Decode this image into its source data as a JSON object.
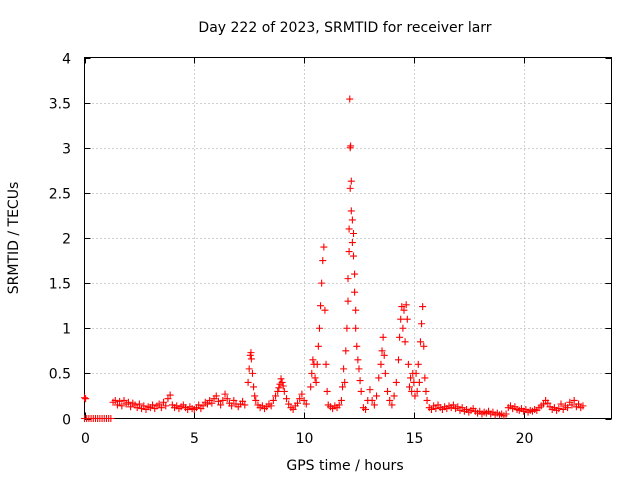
{
  "chart_data": {
    "type": "scatter",
    "title": "Day 222 of 2023, SRMTID for receiver larr",
    "xlabel": "GPS time / hours",
    "ylabel": "SRMTID / TECUs",
    "xlim": [
      0,
      24
    ],
    "ylim": [
      0,
      4
    ],
    "x_ticks": [
      0,
      5,
      10,
      15,
      20
    ],
    "x_tick_labels": [
      "0",
      "5",
      "10",
      "15",
      "20"
    ],
    "y_ticks": [
      0,
      0.5,
      1,
      1.5,
      2,
      2.5,
      3,
      3.5,
      4
    ],
    "y_tick_labels": [
      "0",
      "0.5",
      "1",
      "1.5",
      "2",
      "2.5",
      "3",
      "3.5",
      "4"
    ],
    "grid": true,
    "legend": "none",
    "marker": "plus",
    "series_color": "#ff0000",
    "series": [
      {
        "name": "SRMTID",
        "points": [
          [
            0.0,
            0.23
          ],
          [
            0.05,
            0.22
          ],
          [
            0.0,
            0.0
          ],
          [
            0.1,
            0.0
          ],
          [
            0.2,
            0.0
          ],
          [
            0.3,
            0.0
          ],
          [
            0.4,
            0.0
          ],
          [
            0.5,
            0.0
          ],
          [
            0.6,
            0.0
          ],
          [
            0.7,
            0.0
          ],
          [
            0.8,
            0.0
          ],
          [
            0.9,
            0.0
          ],
          [
            1.0,
            0.0
          ],
          [
            1.1,
            0.0
          ],
          [
            1.2,
            0.0
          ],
          [
            1.3,
            0.18
          ],
          [
            1.4,
            0.2
          ],
          [
            1.5,
            0.15
          ],
          [
            1.6,
            0.19
          ],
          [
            1.7,
            0.14
          ],
          [
            1.8,
            0.2
          ],
          [
            1.9,
            0.16
          ],
          [
            2.0,
            0.18
          ],
          [
            2.1,
            0.13
          ],
          [
            2.2,
            0.17
          ],
          [
            2.3,
            0.15
          ],
          [
            2.4,
            0.12
          ],
          [
            2.5,
            0.16
          ],
          [
            2.6,
            0.11
          ],
          [
            2.7,
            0.14
          ],
          [
            2.8,
            0.1
          ],
          [
            2.9,
            0.13
          ],
          [
            3.0,
            0.12
          ],
          [
            3.1,
            0.15
          ],
          [
            3.2,
            0.11
          ],
          [
            3.3,
            0.14
          ],
          [
            3.4,
            0.16
          ],
          [
            3.5,
            0.12
          ],
          [
            3.6,
            0.18
          ],
          [
            3.7,
            0.14
          ],
          [
            3.8,
            0.22
          ],
          [
            3.9,
            0.26
          ],
          [
            4.0,
            0.15
          ],
          [
            4.1,
            0.12
          ],
          [
            4.2,
            0.14
          ],
          [
            4.3,
            0.11
          ],
          [
            4.4,
            0.13
          ],
          [
            4.5,
            0.15
          ],
          [
            4.6,
            0.12
          ],
          [
            4.7,
            0.1
          ],
          [
            4.8,
            0.13
          ],
          [
            4.9,
            0.11
          ],
          [
            5.0,
            0.1
          ],
          [
            5.1,
            0.12
          ],
          [
            5.2,
            0.15
          ],
          [
            5.3,
            0.11
          ],
          [
            5.4,
            0.14
          ],
          [
            5.5,
            0.18
          ],
          [
            5.6,
            0.16
          ],
          [
            5.7,
            0.2
          ],
          [
            5.8,
            0.17
          ],
          [
            5.9,
            0.22
          ],
          [
            6.0,
            0.25
          ],
          [
            6.1,
            0.19
          ],
          [
            6.2,
            0.15
          ],
          [
            6.3,
            0.2
          ],
          [
            6.4,
            0.27
          ],
          [
            6.5,
            0.22
          ],
          [
            6.6,
            0.17
          ],
          [
            6.7,
            0.14
          ],
          [
            6.8,
            0.2
          ],
          [
            6.9,
            0.16
          ],
          [
            7.0,
            0.13
          ],
          [
            7.1,
            0.16
          ],
          [
            7.2,
            0.19
          ],
          [
            7.3,
            0.15
          ],
          [
            7.45,
            0.4
          ],
          [
            7.5,
            0.55
          ],
          [
            7.55,
            0.7
          ],
          [
            7.58,
            0.73
          ],
          [
            7.6,
            0.66
          ],
          [
            7.65,
            0.5
          ],
          [
            7.7,
            0.35
          ],
          [
            7.75,
            0.25
          ],
          [
            7.8,
            0.2
          ],
          [
            7.9,
            0.15
          ],
          [
            8.0,
            0.12
          ],
          [
            8.1,
            0.14
          ],
          [
            8.2,
            0.11
          ],
          [
            8.3,
            0.13
          ],
          [
            8.4,
            0.16
          ],
          [
            8.5,
            0.14
          ],
          [
            8.6,
            0.2
          ],
          [
            8.7,
            0.25
          ],
          [
            8.8,
            0.3
          ],
          [
            8.85,
            0.34
          ],
          [
            8.9,
            0.38
          ],
          [
            8.95,
            0.44
          ],
          [
            9.0,
            0.4
          ],
          [
            9.05,
            0.36
          ],
          [
            9.1,
            0.3
          ],
          [
            9.2,
            0.22
          ],
          [
            9.3,
            0.16
          ],
          [
            9.4,
            0.12
          ],
          [
            9.5,
            0.1
          ],
          [
            9.6,
            0.14
          ],
          [
            9.7,
            0.17
          ],
          [
            9.8,
            0.22
          ],
          [
            9.9,
            0.27
          ],
          [
            10.0,
            0.2
          ],
          [
            10.1,
            0.16
          ],
          [
            10.3,
            0.35
          ],
          [
            10.35,
            0.5
          ],
          [
            10.4,
            0.65
          ],
          [
            10.45,
            0.6
          ],
          [
            10.5,
            0.45
          ],
          [
            10.55,
            0.4
          ],
          [
            10.6,
            0.6
          ],
          [
            10.65,
            0.8
          ],
          [
            10.7,
            1.0
          ],
          [
            10.75,
            1.25
          ],
          [
            10.8,
            1.5
          ],
          [
            10.85,
            1.75
          ],
          [
            10.9,
            1.9
          ],
          [
            10.95,
            1.2
          ],
          [
            11.0,
            0.6
          ],
          [
            11.05,
            0.3
          ],
          [
            11.1,
            0.15
          ],
          [
            11.2,
            0.13
          ],
          [
            11.3,
            0.11
          ],
          [
            11.4,
            0.14
          ],
          [
            11.5,
            0.12
          ],
          [
            11.6,
            0.15
          ],
          [
            11.7,
            0.2
          ],
          [
            11.75,
            0.35
          ],
          [
            11.8,
            0.55
          ],
          [
            11.85,
            0.4
          ],
          [
            11.9,
            0.75
          ],
          [
            11.95,
            1.0
          ],
          [
            12.0,
            1.3
          ],
          [
            12.0,
            1.55
          ],
          [
            12.05,
            1.85
          ],
          [
            12.05,
            2.1
          ],
          [
            12.1,
            2.55
          ],
          [
            12.1,
            3.0
          ],
          [
            12.08,
            3.54
          ],
          [
            12.12,
            3.02
          ],
          [
            12.15,
            2.63
          ],
          [
            12.15,
            2.3
          ],
          [
            12.2,
            2.2
          ],
          [
            12.2,
            1.95
          ],
          [
            12.25,
            2.05
          ],
          [
            12.25,
            1.8
          ],
          [
            12.3,
            1.6
          ],
          [
            12.3,
            1.4
          ],
          [
            12.35,
            1.2
          ],
          [
            12.35,
            1.0
          ],
          [
            12.4,
            0.8
          ],
          [
            12.45,
            0.65
          ],
          [
            12.5,
            0.55
          ],
          [
            12.55,
            0.42
          ],
          [
            12.6,
            0.3
          ],
          [
            12.7,
            0.12
          ],
          [
            12.8,
            0.1
          ],
          [
            12.9,
            0.2
          ],
          [
            13.0,
            0.32
          ],
          [
            13.1,
            0.2
          ],
          [
            13.2,
            0.15
          ],
          [
            13.3,
            0.25
          ],
          [
            13.4,
            0.45
          ],
          [
            13.5,
            0.6
          ],
          [
            13.55,
            0.75
          ],
          [
            13.6,
            0.9
          ],
          [
            13.65,
            0.7
          ],
          [
            13.7,
            0.5
          ],
          [
            13.8,
            0.3
          ],
          [
            13.9,
            0.2
          ],
          [
            14.0,
            0.15
          ],
          [
            14.1,
            0.25
          ],
          [
            14.2,
            0.4
          ],
          [
            14.3,
            0.65
          ],
          [
            14.35,
            0.9
          ],
          [
            14.4,
            1.1
          ],
          [
            14.45,
            1.24
          ],
          [
            14.5,
            1.0
          ],
          [
            14.55,
            1.2
          ],
          [
            14.6,
            0.85
          ],
          [
            14.65,
            1.26
          ],
          [
            14.7,
            1.1
          ],
          [
            14.75,
            0.6
          ],
          [
            14.8,
            0.35
          ],
          [
            14.85,
            0.45
          ],
          [
            14.9,
            0.3
          ],
          [
            14.95,
            0.5
          ],
          [
            15.0,
            0.4
          ],
          [
            15.05,
            0.25
          ],
          [
            15.1,
            0.5
          ],
          [
            15.15,
            0.3
          ],
          [
            15.2,
            0.6
          ],
          [
            15.25,
            0.4
          ],
          [
            15.3,
            0.85
          ],
          [
            15.35,
            1.05
          ],
          [
            15.4,
            1.24
          ],
          [
            15.45,
            0.8
          ],
          [
            15.5,
            0.45
          ],
          [
            15.55,
            0.3
          ],
          [
            15.6,
            0.2
          ],
          [
            15.7,
            0.12
          ],
          [
            15.8,
            0.1
          ],
          [
            15.9,
            0.14
          ],
          [
            16.0,
            0.11
          ],
          [
            16.1,
            0.15
          ],
          [
            16.2,
            0.12
          ],
          [
            16.3,
            0.1
          ],
          [
            16.4,
            0.13
          ],
          [
            16.5,
            0.11
          ],
          [
            16.6,
            0.14
          ],
          [
            16.7,
            0.12
          ],
          [
            16.8,
            0.15
          ],
          [
            16.9,
            0.11
          ],
          [
            17.0,
            0.13
          ],
          [
            17.1,
            0.09
          ],
          [
            17.2,
            0.12
          ],
          [
            17.3,
            0.08
          ],
          [
            17.4,
            0.1
          ],
          [
            17.5,
            0.07
          ],
          [
            17.6,
            0.09
          ],
          [
            17.7,
            0.11
          ],
          [
            17.8,
            0.08
          ],
          [
            17.9,
            0.06
          ],
          [
            18.0,
            0.08
          ],
          [
            18.1,
            0.05
          ],
          [
            18.2,
            0.07
          ],
          [
            18.3,
            0.06
          ],
          [
            18.4,
            0.08
          ],
          [
            18.5,
            0.05
          ],
          [
            18.6,
            0.07
          ],
          [
            18.7,
            0.04
          ],
          [
            18.8,
            0.06
          ],
          [
            18.9,
            0.04
          ],
          [
            19.0,
            0.05
          ],
          [
            19.1,
            0.03
          ],
          [
            19.2,
            0.05
          ],
          [
            19.3,
            0.12
          ],
          [
            19.4,
            0.14
          ],
          [
            19.5,
            0.11
          ],
          [
            19.6,
            0.13
          ],
          [
            19.7,
            0.1
          ],
          [
            19.8,
            0.09
          ],
          [
            19.9,
            0.11
          ],
          [
            20.0,
            0.08
          ],
          [
            20.1,
            0.1
          ],
          [
            20.2,
            0.07
          ],
          [
            20.3,
            0.09
          ],
          [
            20.4,
            0.08
          ],
          [
            20.5,
            0.1
          ],
          [
            20.6,
            0.09
          ],
          [
            20.7,
            0.12
          ],
          [
            20.8,
            0.14
          ],
          [
            20.9,
            0.16
          ],
          [
            21.0,
            0.2
          ],
          [
            21.1,
            0.17
          ],
          [
            21.2,
            0.13
          ],
          [
            21.3,
            0.1
          ],
          [
            21.4,
            0.12
          ],
          [
            21.5,
            0.09
          ],
          [
            21.6,
            0.11
          ],
          [
            21.7,
            0.16
          ],
          [
            21.8,
            0.1
          ],
          [
            21.9,
            0.14
          ],
          [
            22.0,
            0.12
          ],
          [
            22.1,
            0.18
          ],
          [
            22.2,
            0.15
          ],
          [
            22.3,
            0.2
          ],
          [
            22.4,
            0.13
          ],
          [
            22.5,
            0.16
          ],
          [
            22.6,
            0.12
          ],
          [
            22.7,
            0.14
          ]
        ]
      }
    ]
  }
}
